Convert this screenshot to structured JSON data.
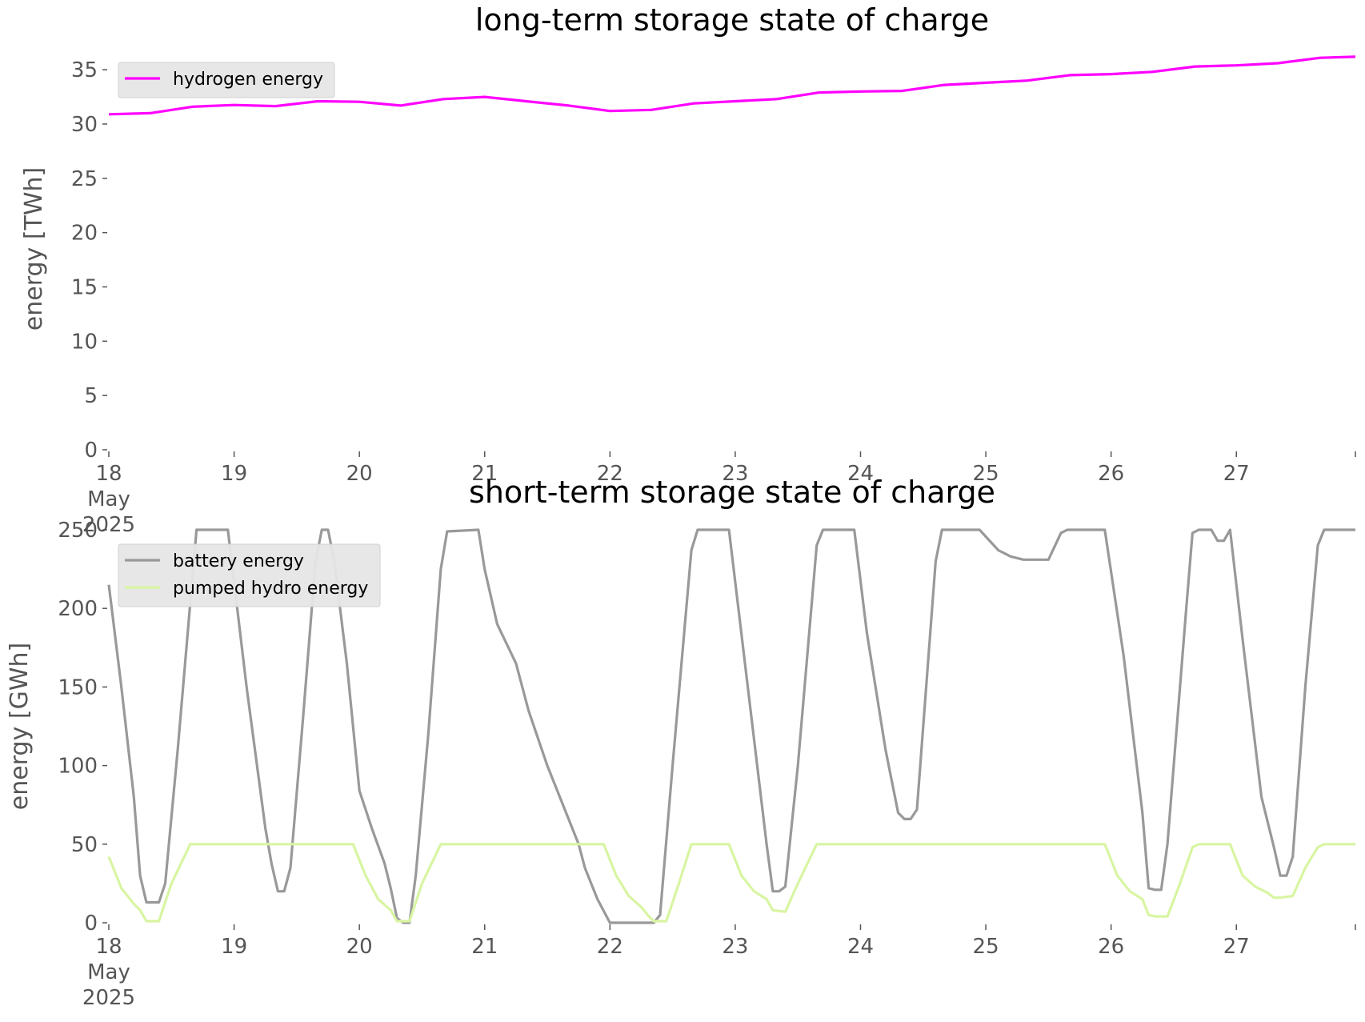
{
  "chart_data": [
    {
      "type": "line",
      "title": "long-term storage state of charge",
      "ylabel": "energy [TWh]",
      "xlabel": "",
      "x_unit": "day (May 2025)",
      "ylim": [
        0,
        37
      ],
      "xlim": [
        18,
        27.95
      ],
      "yticks": [
        0,
        5,
        10,
        15,
        20,
        25,
        30,
        35
      ],
      "xtick_labels": [
        {
          "x": 18,
          "lines": [
            "18",
            "May",
            "2025"
          ]
        },
        {
          "x": 19,
          "lines": [
            "19"
          ]
        },
        {
          "x": 20,
          "lines": [
            "20"
          ]
        },
        {
          "x": 21,
          "lines": [
            "21"
          ]
        },
        {
          "x": 22,
          "lines": [
            "22"
          ]
        },
        {
          "x": 23,
          "lines": [
            "23"
          ]
        },
        {
          "x": 24,
          "lines": [
            "24"
          ]
        },
        {
          "x": 25,
          "lines": [
            "25"
          ]
        },
        {
          "x": 26,
          "lines": [
            "26"
          ]
        },
        {
          "x": 27,
          "lines": [
            "27"
          ]
        }
      ],
      "legend_position": "top-left",
      "grid": false,
      "series": [
        {
          "name": "hydrogen energy",
          "color": "#ff00ff",
          "points": [
            [
              18.0,
              30.9
            ],
            [
              18.33,
              31.0
            ],
            [
              18.67,
              31.6
            ],
            [
              19.0,
              31.75
            ],
            [
              19.33,
              31.65
            ],
            [
              19.67,
              32.1
            ],
            [
              20.0,
              32.05
            ],
            [
              20.33,
              31.7
            ],
            [
              20.67,
              32.3
            ],
            [
              21.0,
              32.5
            ],
            [
              21.33,
              32.1
            ],
            [
              21.67,
              31.7
            ],
            [
              22.0,
              31.2
            ],
            [
              22.33,
              31.3
            ],
            [
              22.67,
              31.9
            ],
            [
              23.0,
              32.1
            ],
            [
              23.33,
              32.3
            ],
            [
              23.67,
              32.9
            ],
            [
              24.0,
              33.0
            ],
            [
              24.33,
              33.05
            ],
            [
              24.67,
              33.6
            ],
            [
              25.0,
              33.8
            ],
            [
              25.33,
              34.0
            ],
            [
              25.67,
              34.5
            ],
            [
              26.0,
              34.6
            ],
            [
              26.33,
              34.8
            ],
            [
              26.67,
              35.3
            ],
            [
              27.0,
              35.4
            ],
            [
              27.33,
              35.6
            ],
            [
              27.67,
              36.1
            ],
            [
              27.95,
              36.2
            ]
          ]
        }
      ]
    },
    {
      "type": "line",
      "title": "short-term storage state of charge",
      "ylabel": "energy [GWh]",
      "xlabel": "",
      "x_unit": "day (May 2025)",
      "ylim": [
        0,
        250
      ],
      "xlim": [
        18,
        27.95
      ],
      "yticks": [
        0,
        50,
        100,
        150,
        200,
        250
      ],
      "xtick_labels": [
        {
          "x": 18,
          "lines": [
            "18",
            "May",
            "2025"
          ]
        },
        {
          "x": 19,
          "lines": [
            "19"
          ]
        },
        {
          "x": 20,
          "lines": [
            "20"
          ]
        },
        {
          "x": 21,
          "lines": [
            "21"
          ]
        },
        {
          "x": 22,
          "lines": [
            "22"
          ]
        },
        {
          "x": 23,
          "lines": [
            "23"
          ]
        },
        {
          "x": 24,
          "lines": [
            "24"
          ]
        },
        {
          "x": 25,
          "lines": [
            "25"
          ]
        },
        {
          "x": 26,
          "lines": [
            "26"
          ]
        },
        {
          "x": 27,
          "lines": [
            "27"
          ]
        }
      ],
      "legend_position": "top-left",
      "grid": false,
      "series": [
        {
          "name": "battery energy",
          "color": "#999999",
          "points": [
            [
              18.0,
              215
            ],
            [
              18.1,
              150
            ],
            [
              18.2,
              80
            ],
            [
              18.25,
              30
            ],
            [
              18.3,
              13
            ],
            [
              18.4,
              13
            ],
            [
              18.45,
              25
            ],
            [
              18.55,
              110
            ],
            [
              18.7,
              250
            ],
            [
              18.95,
              250
            ],
            [
              19.1,
              150
            ],
            [
              19.25,
              60
            ],
            [
              19.3,
              37
            ],
            [
              19.35,
              20
            ],
            [
              19.4,
              20
            ],
            [
              19.45,
              35
            ],
            [
              19.55,
              130
            ],
            [
              19.65,
              230
            ],
            [
              19.7,
              250
            ],
            [
              19.75,
              250
            ],
            [
              19.8,
              230
            ],
            [
              19.9,
              165
            ],
            [
              20.0,
              84
            ],
            [
              20.1,
              60
            ],
            [
              20.2,
              38
            ],
            [
              20.25,
              22
            ],
            [
              20.3,
              3
            ],
            [
              20.35,
              0
            ],
            [
              20.4,
              0
            ],
            [
              20.45,
              30
            ],
            [
              20.55,
              120
            ],
            [
              20.65,
              225
            ],
            [
              20.7,
              249
            ],
            [
              20.95,
              250
            ],
            [
              21.0,
              225
            ],
            [
              21.1,
              190
            ],
            [
              21.25,
              165
            ],
            [
              21.35,
              135
            ],
            [
              21.5,
              100
            ],
            [
              21.65,
              70
            ],
            [
              21.75,
              50
            ],
            [
              21.8,
              35
            ],
            [
              21.9,
              15
            ],
            [
              22.0,
              0
            ],
            [
              22.35,
              0
            ],
            [
              22.4,
              5
            ],
            [
              22.5,
              100
            ],
            [
              22.65,
              237
            ],
            [
              22.7,
              250
            ],
            [
              22.95,
              250
            ],
            [
              23.1,
              150
            ],
            [
              23.25,
              50
            ],
            [
              23.3,
              20
            ],
            [
              23.35,
              20
            ],
            [
              23.4,
              23
            ],
            [
              23.5,
              100
            ],
            [
              23.65,
              240
            ],
            [
              23.7,
              250
            ],
            [
              23.95,
              250
            ],
            [
              24.05,
              185
            ],
            [
              24.2,
              110
            ],
            [
              24.3,
              70
            ],
            [
              24.35,
              66
            ],
            [
              24.4,
              66
            ],
            [
              24.45,
              72
            ],
            [
              24.6,
              230
            ],
            [
              24.65,
              250
            ],
            [
              24.95,
              250
            ],
            [
              25.1,
              237
            ],
            [
              25.2,
              233
            ],
            [
              25.3,
              231
            ],
            [
              25.5,
              231
            ],
            [
              25.6,
              248
            ],
            [
              25.65,
              250
            ],
            [
              25.95,
              250
            ],
            [
              26.1,
              170
            ],
            [
              26.25,
              70
            ],
            [
              26.3,
              22
            ],
            [
              26.35,
              21
            ],
            [
              26.4,
              21
            ],
            [
              26.45,
              50
            ],
            [
              26.6,
              200
            ],
            [
              26.65,
              248
            ],
            [
              26.7,
              250
            ],
            [
              26.8,
              250
            ],
            [
              26.85,
              243
            ],
            [
              26.9,
              243
            ],
            [
              26.95,
              250
            ],
            [
              27.05,
              180
            ],
            [
              27.2,
              80
            ],
            [
              27.3,
              48
            ],
            [
              27.35,
              30
            ],
            [
              27.4,
              30
            ],
            [
              27.45,
              42
            ],
            [
              27.55,
              150
            ],
            [
              27.65,
              240
            ],
            [
              27.7,
              250
            ],
            [
              27.95,
              250
            ]
          ]
        },
        {
          "name": "pumped hydro energy",
          "color": "#d8f5a2",
          "points": [
            [
              18.0,
              42
            ],
            [
              18.1,
              22
            ],
            [
              18.2,
              12
            ],
            [
              18.25,
              8
            ],
            [
              18.3,
              1
            ],
            [
              18.4,
              1
            ],
            [
              18.5,
              25
            ],
            [
              18.65,
              50
            ],
            [
              19.95,
              50
            ],
            [
              20.05,
              30
            ],
            [
              20.15,
              15
            ],
            [
              20.25,
              8
            ],
            [
              20.3,
              1
            ],
            [
              20.4,
              1
            ],
            [
              20.5,
              25
            ],
            [
              20.65,
              50
            ],
            [
              21.95,
              50
            ],
            [
              22.05,
              30
            ],
            [
              22.15,
              17
            ],
            [
              22.25,
              10
            ],
            [
              22.3,
              5
            ],
            [
              22.35,
              1
            ],
            [
              22.45,
              1
            ],
            [
              22.55,
              25
            ],
            [
              22.65,
              50
            ],
            [
              22.95,
              50
            ],
            [
              23.05,
              30
            ],
            [
              23.15,
              20
            ],
            [
              23.25,
              15
            ],
            [
              23.3,
              8
            ],
            [
              23.4,
              7
            ],
            [
              23.5,
              25
            ],
            [
              23.65,
              50
            ],
            [
              25.95,
              50
            ],
            [
              26.05,
              30
            ],
            [
              26.15,
              20
            ],
            [
              26.25,
              15
            ],
            [
              26.3,
              5
            ],
            [
              26.35,
              4
            ],
            [
              26.45,
              4
            ],
            [
              26.55,
              25
            ],
            [
              26.65,
              48
            ],
            [
              26.7,
              50
            ],
            [
              26.95,
              50
            ],
            [
              27.05,
              30
            ],
            [
              27.15,
              23
            ],
            [
              27.25,
              19
            ],
            [
              27.3,
              16
            ],
            [
              27.35,
              16
            ],
            [
              27.45,
              17
            ],
            [
              27.55,
              35
            ],
            [
              27.65,
              48
            ],
            [
              27.7,
              50
            ],
            [
              27.95,
              50
            ]
          ]
        }
      ]
    }
  ]
}
